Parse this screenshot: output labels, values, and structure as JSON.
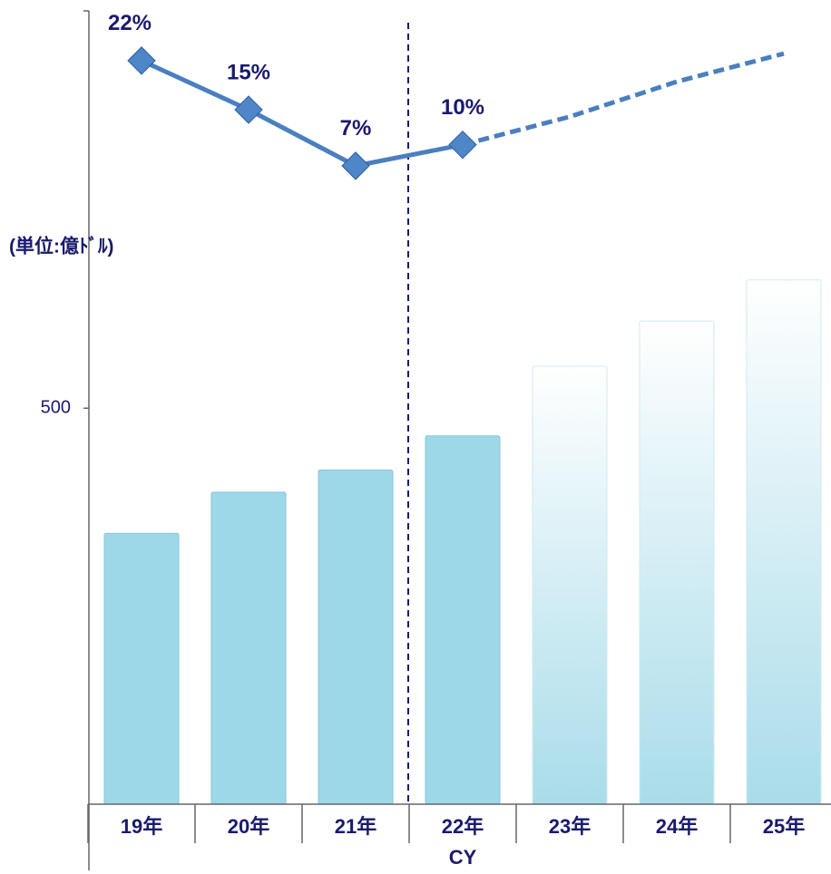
{
  "chart_data": {
    "type": "bar_line",
    "y_unit_label": "(単位:億ﾄﾞﾙ)",
    "x_axis_label": "CY",
    "categories": [
      "19年",
      "20年",
      "21年",
      "22年",
      "23年",
      "24年",
      "25年"
    ],
    "values": [
      342,
      394,
      422,
      465,
      553,
      610,
      662
    ],
    "color": "#9dd8e8",
    "forecast_color": "#ffffff",
    "forecast_from": 4,
    "divider_after": 2,
    "ylim": [
      0,
      680
    ],
    "yticks": [
      500
    ],
    "line": {
      "values": [
        22,
        15,
        7,
        10,
        14,
        19,
        23
      ],
      "value_labels": [
        "22%",
        "15%",
        "7%",
        "10%",
        null,
        null,
        null
      ],
      "color": "#4a7fc0",
      "label_color": "#1a1a6e"
    },
    "y2lim": [
      0,
      30
    ]
  }
}
